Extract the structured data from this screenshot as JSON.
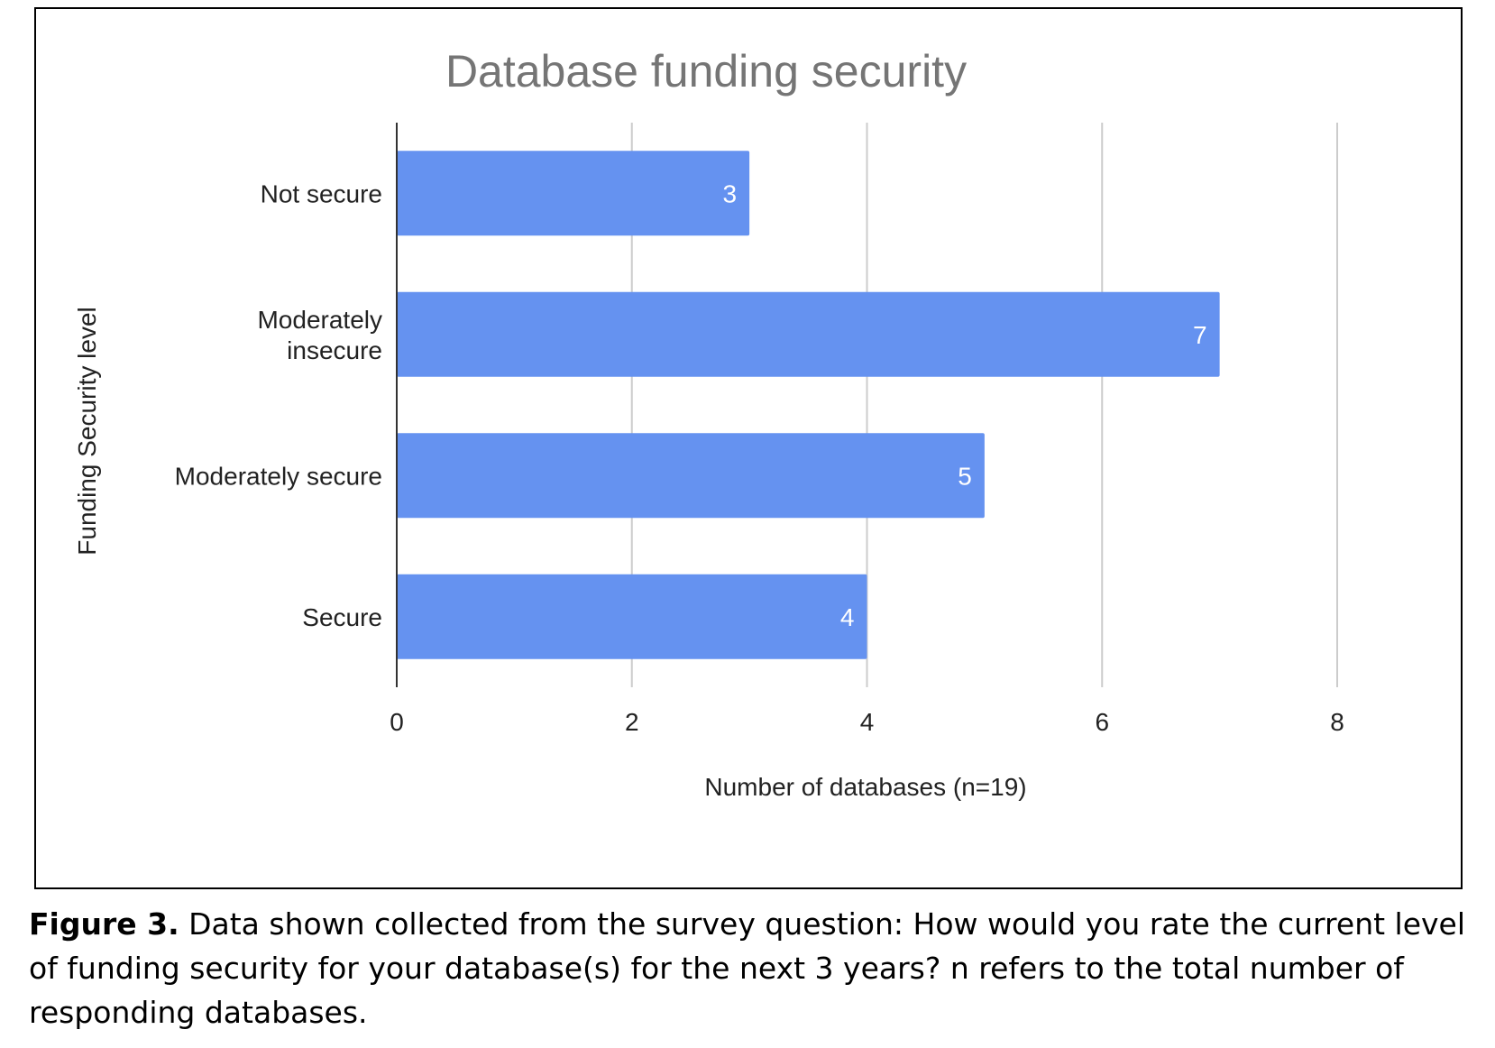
{
  "chart_data": {
    "type": "bar",
    "orientation": "horizontal",
    "title": "Database funding security",
    "xlabel": "Number of databases (n=19)",
    "ylabel": "Funding Security level",
    "categories": [
      [
        "Not secure"
      ],
      [
        "Moderately",
        "insecure"
      ],
      [
        "Moderately secure"
      ],
      [
        "Secure"
      ]
    ],
    "values": [
      3,
      7,
      5,
      4
    ],
    "data_labels": [
      "3",
      "7",
      "5",
      "4"
    ],
    "xlim": [
      0,
      8
    ],
    "xticks": [
      0,
      2,
      4,
      6,
      8
    ],
    "xtick_labels": [
      "0",
      "2",
      "4",
      "6",
      "8"
    ],
    "grid": true,
    "colors": {
      "bar": "#6592F0",
      "grid": "#CCCCCC",
      "axis": "#333333",
      "title": "#757575",
      "text": "#222222",
      "data_label": "#FFFFFF"
    }
  },
  "caption": {
    "label": "Figure 3.",
    "text": " Data shown collected from the survey question: How would you rate the current level of funding security for your database(s) for the next 3 years? n refers to the total number of responding databases."
  }
}
